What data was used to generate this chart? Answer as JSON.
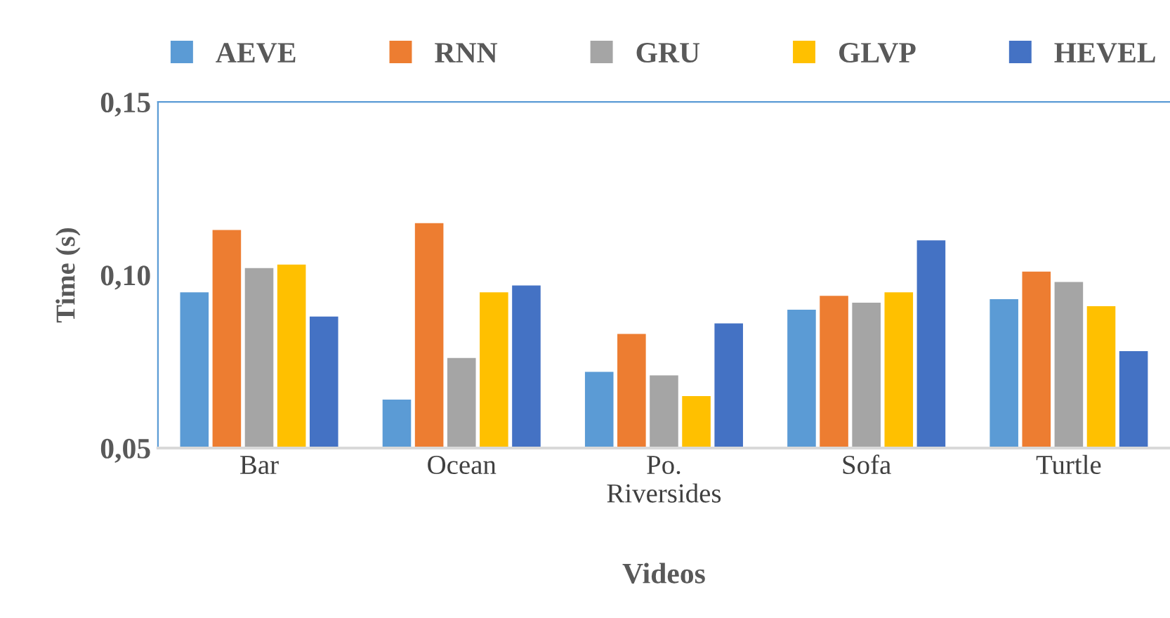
{
  "chart_data": {
    "type": "bar",
    "xlabel": "Videos",
    "ylabel": "Time (s)",
    "categories": [
      "Bar",
      "Ocean",
      "Po.\nRiversides",
      "Sofa",
      "Turtle"
    ],
    "series": [
      {
        "name": "AEVE",
        "color": "#5b9bd5",
        "values": [
          0.095,
          0.064,
          0.072,
          0.09,
          0.093
        ]
      },
      {
        "name": "RNN",
        "color": "#ed7d31",
        "values": [
          0.113,
          0.115,
          0.083,
          0.094,
          0.101
        ]
      },
      {
        "name": "GRU",
        "color": "#a5a5a5",
        "values": [
          0.102,
          0.076,
          0.071,
          0.092,
          0.098
        ]
      },
      {
        "name": "GLVP",
        "color": "#ffc000",
        "values": [
          0.103,
          0.095,
          0.065,
          0.095,
          0.091
        ]
      },
      {
        "name": "HEVEL",
        "color": "#4472c4",
        "values": [
          0.088,
          0.097,
          0.086,
          0.11,
          0.078
        ]
      }
    ],
    "ylim": [
      0.05,
      0.15
    ],
    "yticks": [
      {
        "value": 0.05,
        "label": "0,05"
      },
      {
        "value": 0.1,
        "label": "0,10"
      },
      {
        "value": 0.15,
        "label": "0,15"
      }
    ],
    "grid": false,
    "legend": "top"
  }
}
